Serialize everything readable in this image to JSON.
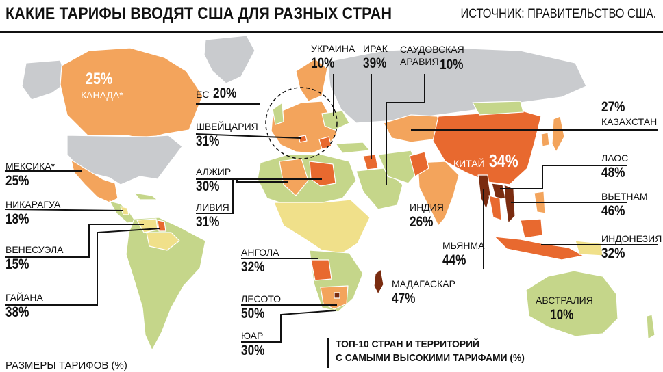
{
  "header": {
    "title": "КАКИЕ ТАРИФЫ ВВОДЯТ США ДЛЯ РАЗНЫХ СТРАН",
    "source": "ИСТОЧНИК: ПРАВИТЕЛЬСТВО США."
  },
  "colors": {
    "no_data": "#c9cbce",
    "band_10": "#c5d68a",
    "band_15_20": "#f0e08a",
    "band_25_30": "#f3a45c",
    "band_31_39": "#e8692f",
    "band_40_plus": "#7a2c10",
    "ocean": "#ffffff"
  },
  "countries": [
    {
      "name": "ЕС",
      "tariff": "20%"
    },
    {
      "name": "УКРАИНА",
      "tariff": "10%"
    },
    {
      "name": "ИРАК",
      "tariff": "39%"
    },
    {
      "name": "САУДОВСКАЯ АРАВИЯ",
      "tariff": "10%"
    },
    {
      "name": "КАНАДА*",
      "tariff": "25%"
    },
    {
      "name": "ШВЕЙЦАРИЯ",
      "tariff": "31%"
    },
    {
      "name": "КАЗАХСТАН",
      "tariff": "27%"
    },
    {
      "name": "КИТАЙ",
      "tariff": "34%"
    },
    {
      "name": "МЕКСИКА*",
      "tariff": "25%"
    },
    {
      "name": "АЛЖИР",
      "tariff": "30%"
    },
    {
      "name": "ЛАОС",
      "tariff": "48%"
    },
    {
      "name": "НИКАРАГУА",
      "tariff": "18%"
    },
    {
      "name": "ЛИВИЯ",
      "tariff": "31%"
    },
    {
      "name": "ИНДИЯ",
      "tariff": "26%"
    },
    {
      "name": "ВЬЕТНАМ",
      "tariff": "46%"
    },
    {
      "name": "ВЕНЕСУЭЛА",
      "tariff": "15%"
    },
    {
      "name": "МЬЯНМА",
      "tariff": "44%"
    },
    {
      "name": "ИНДОНЕЗИЯ",
      "tariff": "32%"
    },
    {
      "name": "АНГОЛА",
      "tariff": "32%"
    },
    {
      "name": "МАДАГАСКАР",
      "tariff": "47%"
    },
    {
      "name": "ГАЙАНА",
      "tariff": "38%"
    },
    {
      "name": "ЛЕСОТО",
      "tariff": "50%"
    },
    {
      "name": "АВСТРАЛИЯ",
      "tariff": "10%"
    },
    {
      "name": "ЮАР",
      "tariff": "30%"
    }
  ],
  "legend": {
    "title": "РАЗМЕРЫ ТАРИФОВ (%)"
  },
  "top10": {
    "line1": "ТОП-10 СТРАН И ТЕРРИТОРИЙ",
    "line2": "С САМЫМИ ВЫСОКИМИ ТАРИФАМИ (%)"
  }
}
